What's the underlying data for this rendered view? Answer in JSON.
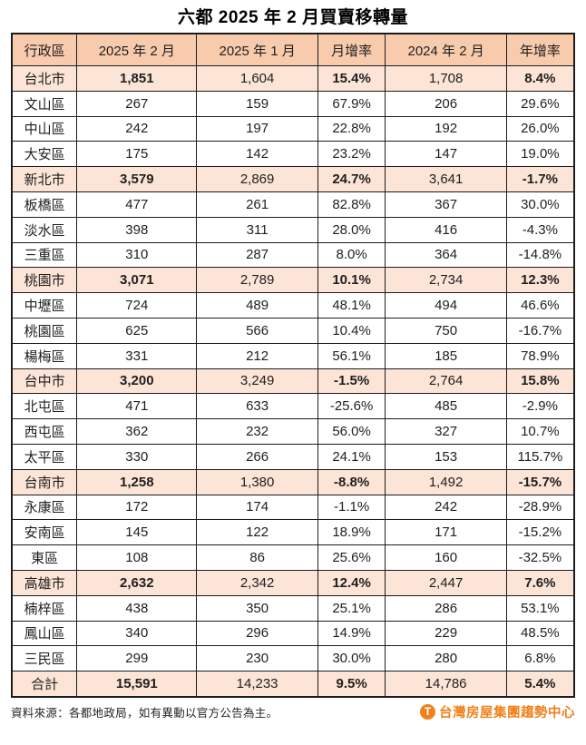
{
  "title": "六都 2025 年 2 月買賣移轉量",
  "chart_data": {
    "type": "table",
    "title": "六都 2025 年 2 月買賣移轉量",
    "columns": [
      "行政區",
      "2025 年 2 月",
      "2025 年 1 月",
      "月增率",
      "2024 年 2 月",
      "年增率"
    ],
    "bold_value_columns_in_summary_rows": [
      0,
      2,
      4
    ],
    "rows": [
      {
        "region": "台北市",
        "values": [
          "1,851",
          "1,604",
          "15.4%",
          "1,708",
          "8.4%"
        ],
        "is_summary": true
      },
      {
        "region": "文山區",
        "values": [
          "267",
          "159",
          "67.9%",
          "206",
          "29.6%"
        ],
        "is_summary": false
      },
      {
        "region": "中山區",
        "values": [
          "242",
          "197",
          "22.8%",
          "192",
          "26.0%"
        ],
        "is_summary": false
      },
      {
        "region": "大安區",
        "values": [
          "175",
          "142",
          "23.2%",
          "147",
          "19.0%"
        ],
        "is_summary": false
      },
      {
        "region": "新北市",
        "values": [
          "3,579",
          "2,869",
          "24.7%",
          "3,641",
          "-1.7%"
        ],
        "is_summary": true
      },
      {
        "region": "板橋區",
        "values": [
          "477",
          "261",
          "82.8%",
          "367",
          "30.0%"
        ],
        "is_summary": false
      },
      {
        "region": "淡水區",
        "values": [
          "398",
          "311",
          "28.0%",
          "416",
          "-4.3%"
        ],
        "is_summary": false
      },
      {
        "region": "三重區",
        "values": [
          "310",
          "287",
          "8.0%",
          "364",
          "-14.8%"
        ],
        "is_summary": false
      },
      {
        "region": "桃園市",
        "values": [
          "3,071",
          "2,789",
          "10.1%",
          "2,734",
          "12.3%"
        ],
        "is_summary": true
      },
      {
        "region": "中壢區",
        "values": [
          "724",
          "489",
          "48.1%",
          "494",
          "46.6%"
        ],
        "is_summary": false
      },
      {
        "region": "桃園區",
        "values": [
          "625",
          "566",
          "10.4%",
          "750",
          "-16.7%"
        ],
        "is_summary": false
      },
      {
        "region": "楊梅區",
        "values": [
          "331",
          "212",
          "56.1%",
          "185",
          "78.9%"
        ],
        "is_summary": false
      },
      {
        "region": "台中市",
        "values": [
          "3,200",
          "3,249",
          "-1.5%",
          "2,764",
          "15.8%"
        ],
        "is_summary": true
      },
      {
        "region": "北屯區",
        "values": [
          "471",
          "633",
          "-25.6%",
          "485",
          "-2.9%"
        ],
        "is_summary": false
      },
      {
        "region": "西屯區",
        "values": [
          "362",
          "232",
          "56.0%",
          "327",
          "10.7%"
        ],
        "is_summary": false
      },
      {
        "region": "太平區",
        "values": [
          "330",
          "266",
          "24.1%",
          "153",
          "115.7%"
        ],
        "is_summary": false
      },
      {
        "region": "台南市",
        "values": [
          "1,258",
          "1,380",
          "-8.8%",
          "1,492",
          "-15.7%"
        ],
        "is_summary": true
      },
      {
        "region": "永康區",
        "values": [
          "172",
          "174",
          "-1.1%",
          "242",
          "-28.9%"
        ],
        "is_summary": false
      },
      {
        "region": "安南區",
        "values": [
          "145",
          "122",
          "18.9%",
          "171",
          "-15.2%"
        ],
        "is_summary": false
      },
      {
        "region": "東區",
        "values": [
          "108",
          "86",
          "25.6%",
          "160",
          "-32.5%"
        ],
        "is_summary": false
      },
      {
        "region": "高雄市",
        "values": [
          "2,632",
          "2,342",
          "12.4%",
          "2,447",
          "7.6%"
        ],
        "is_summary": true
      },
      {
        "region": "楠梓區",
        "values": [
          "438",
          "350",
          "25.1%",
          "286",
          "53.1%"
        ],
        "is_summary": false
      },
      {
        "region": "鳳山區",
        "values": [
          "340",
          "296",
          "14.9%",
          "229",
          "48.5%"
        ],
        "is_summary": false
      },
      {
        "region": "三民區",
        "values": [
          "299",
          "230",
          "30.0%",
          "280",
          "6.8%"
        ],
        "is_summary": false
      },
      {
        "region": "合計",
        "values": [
          "15,591",
          "14,233",
          "9.5%",
          "14,786",
          "5.4%"
        ],
        "is_summary": true
      }
    ]
  },
  "footer": {
    "source": "資料來源：各都地政局，如有異動以官方公告為主。",
    "logo_text": "台灣房屋集團趨勢中心",
    "logo_letter": "T",
    "logo_color": "#f0821e"
  },
  "colors": {
    "header_bg": "#f8cbad",
    "summary_row_bg": "#fce4d6",
    "border": "#1c1c1c"
  }
}
